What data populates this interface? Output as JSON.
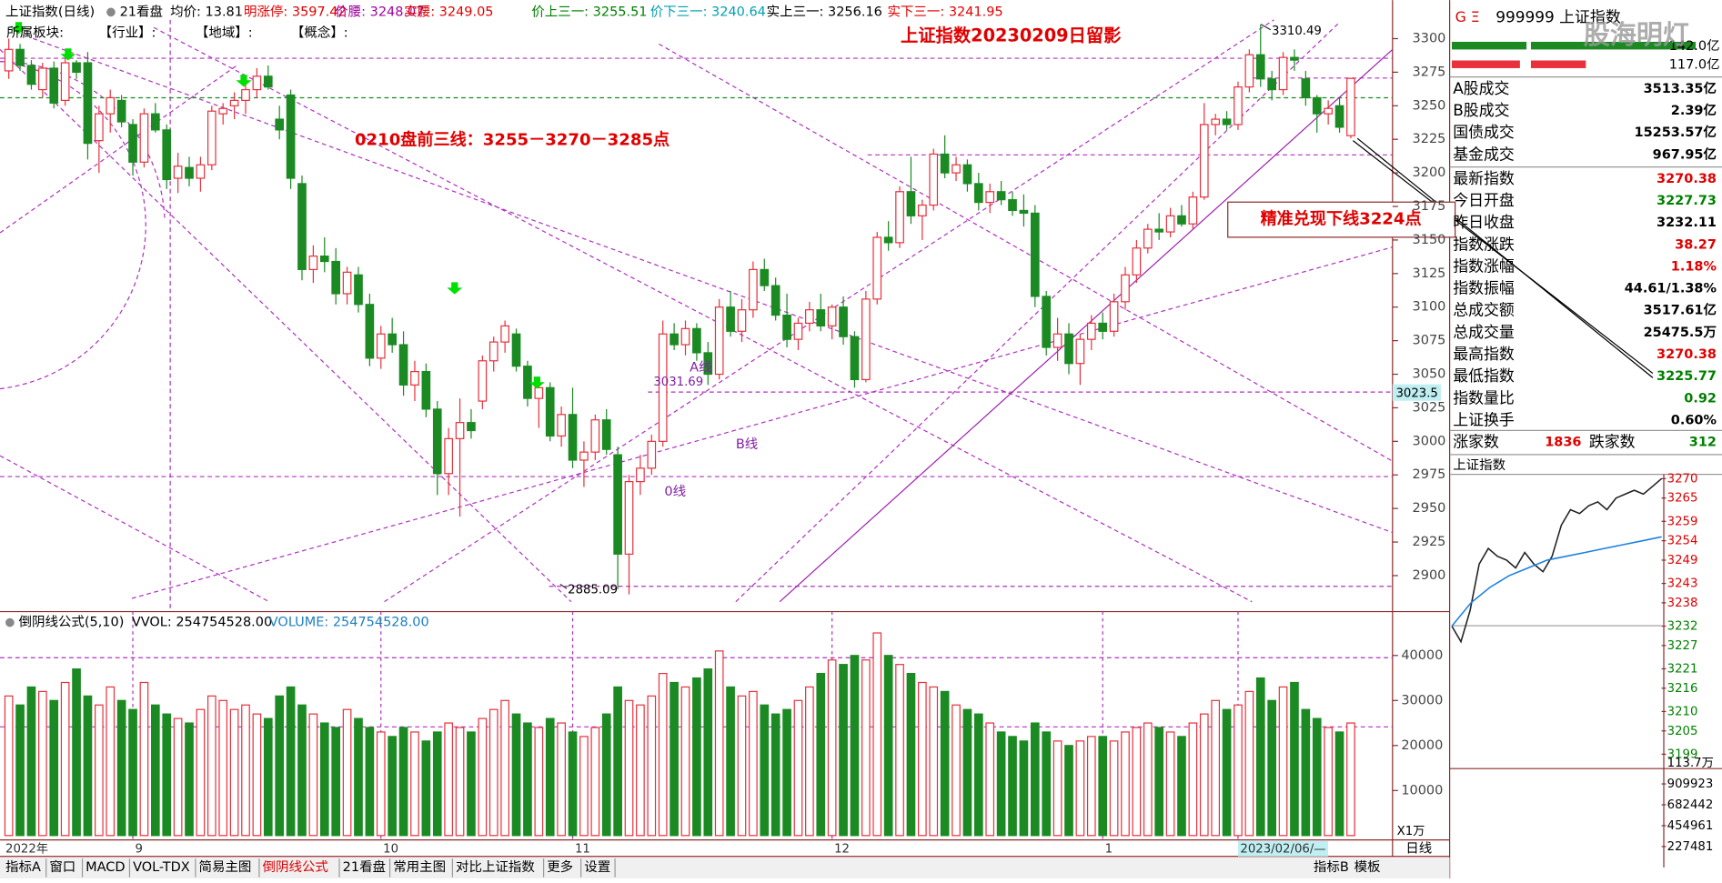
{
  "chart_data": {
    "type": "candlestick",
    "header": [
      {
        "text": "上证指数(日线)",
        "color": "#000000"
      },
      {
        "text": "21看盘",
        "color": "#000000"
      },
      {
        "text": "均价: 13.81",
        "color": "#000000"
      },
      {
        "text": "明涨停: 3597.42",
        "color": "#e00000"
      },
      {
        "text": "价腰: 3248.07",
        "color": "#a000a0"
      },
      {
        "text": "实腰: 3249.05",
        "color": "#e00000"
      },
      {
        "text": "价上三一: 3255.51",
        "color": "#008000"
      },
      {
        "text": "价下三一: 3240.64",
        "color": "#00a0b0"
      },
      {
        "text": "实上三一: 3256.16",
        "color": "#000000"
      },
      {
        "text": "实下三一: 3241.95",
        "color": "#e00000"
      }
    ],
    "sector_labels": [
      "所属板块:",
      "【行业】:",
      "【地域】:",
      "【概念】:"
    ],
    "annotations": {
      "title": "上证指数20230209日留影",
      "plan": "0210盘前三线：3255－3270－3285点",
      "result": "精准兑现下线3224点",
      "high": "3310.49",
      "low": "2885.09",
      "mid": "3031.69",
      "line_a": "A线",
      "line_b": "B线",
      "line_0": "0线",
      "level": "3023.5"
    },
    "categories": [
      "2022年",
      null,
      null,
      null,
      null,
      null,
      null,
      null,
      null,
      null,
      null,
      "9",
      null,
      null,
      null,
      null,
      null,
      null,
      null,
      null,
      null,
      null,
      null,
      null,
      null,
      null,
      null,
      null,
      null,
      null,
      null,
      null,
      null,
      "10",
      null,
      null,
      null,
      null,
      null,
      null,
      null,
      null,
      null,
      null,
      null,
      null,
      null,
      null,
      null,
      null,
      "11",
      null,
      null,
      null,
      null,
      null,
      null,
      null,
      null,
      null,
      null,
      null,
      null,
      null,
      null,
      null,
      null,
      null,
      null,
      null,
      null,
      null,
      null,
      "12",
      null,
      null,
      null,
      null,
      null,
      null,
      null,
      null,
      null,
      null,
      null,
      null,
      null,
      null,
      null,
      null,
      null,
      null,
      null,
      null,
      null,
      null,
      null,
      "1",
      null,
      null,
      null,
      null,
      null,
      null,
      null,
      null,
      null,
      null,
      null,
      "2023/02/06/—",
      null,
      null,
      null,
      null,
      null,
      null,
      null,
      null,
      null,
      null,
      null
    ],
    "candles": [
      [
        3276,
        3300,
        3270,
        3292
      ],
      [
        3292,
        3296,
        3276,
        3280
      ],
      [
        3280,
        3284,
        3262,
        3266
      ],
      [
        3262,
        3282,
        3256,
        3278
      ],
      [
        3278,
        3283,
        3248,
        3252
      ],
      [
        3254,
        3286,
        3250,
        3282
      ],
      [
        3282,
        3284,
        3270,
        3275
      ],
      [
        3282,
        3290,
        3210,
        3222
      ],
      [
        3224,
        3250,
        3200,
        3244
      ],
      [
        3244,
        3262,
        3230,
        3256
      ],
      [
        3254,
        3258,
        3234,
        3238
      ],
      [
        3236,
        3240,
        3198,
        3208
      ],
      [
        3208,
        3248,
        3204,
        3244
      ],
      [
        3244,
        3252,
        3230,
        3232
      ],
      [
        3232,
        3236,
        3188,
        3195
      ],
      [
        3196,
        3215,
        3185,
        3205
      ],
      [
        3204,
        3212,
        3190,
        3196
      ],
      [
        3196,
        3212,
        3186,
        3206
      ],
      [
        3206,
        3250,
        3202,
        3246
      ],
      [
        3244,
        3252,
        3236,
        3248
      ],
      [
        3250,
        3260,
        3240,
        3254
      ],
      [
        3254,
        3268,
        3244,
        3262
      ],
      [
        3262,
        3278,
        3256,
        3272
      ],
      [
        3272,
        3280,
        3262,
        3264
      ],
      [
        3240,
        3250,
        3225,
        3232
      ],
      [
        3258,
        3262,
        3188,
        3196
      ],
      [
        3192,
        3198,
        3120,
        3128
      ],
      [
        3128,
        3146,
        3118,
        3138
      ],
      [
        3138,
        3152,
        3126,
        3134
      ],
      [
        3134,
        3144,
        3102,
        3110
      ],
      [
        3110,
        3130,
        3102,
        3126
      ],
      [
        3124,
        3130,
        3096,
        3102
      ],
      [
        3102,
        3110,
        3056,
        3062
      ],
      [
        3062,
        3086,
        3054,
        3080
      ],
      [
        3080,
        3092,
        3066,
        3072
      ],
      [
        3072,
        3082,
        3034,
        3042
      ],
      [
        3042,
        3060,
        3030,
        3052
      ],
      [
        3052,
        3058,
        3018,
        3024
      ],
      [
        3024,
        3030,
        2960,
        2976
      ],
      [
        2976,
        3010,
        2960,
        3002
      ],
      [
        3002,
        3032,
        2944,
        3014
      ],
      [
        3014,
        3024,
        3002,
        3008
      ],
      [
        3030,
        3064,
        3024,
        3060
      ],
      [
        3060,
        3078,
        3052,
        3074
      ],
      [
        3074,
        3090,
        3066,
        3086
      ],
      [
        3080,
        3084,
        3052,
        3056
      ],
      [
        3056,
        3060,
        3026,
        3032
      ],
      [
        3032,
        3048,
        3010,
        3040
      ],
      [
        3040,
        3044,
        3000,
        3004
      ],
      [
        3004,
        3026,
        2996,
        3020
      ],
      [
        3020,
        3040,
        2980,
        2986
      ],
      [
        2986,
        3000,
        2966,
        2992
      ],
      [
        2992,
        3020,
        2986,
        3016
      ],
      [
        3016,
        3024,
        2990,
        2994
      ],
      [
        2990,
        2996,
        2890,
        2916
      ],
      [
        2916,
        2975,
        2886,
        2970
      ],
      [
        2970,
        2990,
        2960,
        2980
      ],
      [
        2980,
        3005,
        2975,
        3000
      ],
      [
        3000,
        3090,
        2996,
        3080
      ],
      [
        3080,
        3088,
        3068,
        3072
      ],
      [
        3072,
        3090,
        3064,
        3084
      ],
      [
        3084,
        3088,
        3060,
        3066
      ],
      [
        3066,
        3074,
        3042,
        3050
      ],
      [
        3050,
        3106,
        3046,
        3100
      ],
      [
        3100,
        3112,
        3078,
        3082
      ],
      [
        3082,
        3106,
        3074,
        3098
      ],
      [
        3098,
        3134,
        3092,
        3128
      ],
      [
        3128,
        3136,
        3112,
        3116
      ],
      [
        3116,
        3122,
        3090,
        3094
      ],
      [
        3094,
        3110,
        3070,
        3076
      ],
      [
        3076,
        3092,
        3068,
        3088
      ],
      [
        3088,
        3104,
        3082,
        3098
      ],
      [
        3098,
        3110,
        3082,
        3086
      ],
      [
        3086,
        3102,
        3076,
        3100
      ],
      [
        3100,
        3108,
        3072,
        3078
      ],
      [
        3078,
        3082,
        3040,
        3046
      ],
      [
        3046,
        3112,
        3044,
        3106
      ],
      [
        3106,
        3156,
        3102,
        3152
      ],
      [
        3152,
        3164,
        3142,
        3148
      ],
      [
        3148,
        3190,
        3144,
        3186
      ],
      [
        3186,
        3212,
        3162,
        3168
      ],
      [
        3168,
        3180,
        3150,
        3176
      ],
      [
        3176,
        3218,
        3172,
        3214
      ],
      [
        3214,
        3228,
        3196,
        3200
      ],
      [
        3200,
        3212,
        3194,
        3206
      ],
      [
        3206,
        3210,
        3186,
        3192
      ],
      [
        3192,
        3200,
        3172,
        3178
      ],
      [
        3178,
        3192,
        3170,
        3186
      ],
      [
        3186,
        3194,
        3176,
        3180
      ],
      [
        3180,
        3186,
        3168,
        3172
      ],
      [
        3172,
        3184,
        3160,
        3170
      ],
      [
        3170,
        3176,
        3100,
        3108
      ],
      [
        3108,
        3112,
        3064,
        3070
      ],
      [
        3070,
        3092,
        3060,
        3080
      ],
      [
        3080,
        3088,
        3050,
        3058
      ],
      [
        3058,
        3080,
        3042,
        3076
      ],
      [
        3076,
        3094,
        3068,
        3088
      ],
      [
        3088,
        3096,
        3076,
        3082
      ],
      [
        3082,
        3110,
        3078,
        3104
      ],
      [
        3104,
        3130,
        3098,
        3124
      ],
      [
        3124,
        3150,
        3118,
        3144
      ],
      [
        3144,
        3162,
        3140,
        3158
      ],
      [
        3158,
        3170,
        3150,
        3156
      ],
      [
        3156,
        3174,
        3152,
        3168
      ],
      [
        3168,
        3176,
        3160,
        3162
      ],
      [
        3162,
        3186,
        3158,
        3182
      ],
      [
        3182,
        3252,
        3180,
        3236
      ],
      [
        3236,
        3244,
        3228,
        3240
      ],
      [
        3240,
        3246,
        3232,
        3236
      ],
      [
        3236,
        3268,
        3232,
        3264
      ],
      [
        3264,
        3292,
        3260,
        3288
      ],
      [
        3288,
        3310.49,
        3264,
        3270
      ],
      [
        3270,
        3276,
        3254,
        3262
      ],
      [
        3262,
        3290,
        3258,
        3286
      ],
      [
        3286,
        3292,
        3276,
        3284
      ],
      [
        3270,
        3276,
        3250,
        3256
      ],
      [
        3256,
        3258,
        3230,
        3244
      ],
      [
        3244,
        3254,
        3236,
        3248
      ],
      [
        3250,
        3256,
        3230,
        3234
      ],
      [
        3227.73,
        3270.38,
        3225.77,
        3270.38
      ]
    ],
    "ylim": [
      2874,
      3314
    ],
    "yticks": [
      2900,
      2925,
      2950,
      2975,
      3000,
      3025,
      3050,
      3075,
      3100,
      3125,
      3150,
      3175,
      3200,
      3225,
      3250,
      3275,
      3300
    ],
    "up_color": "#e8313c",
    "down_color": "#1b8a22",
    "volume": {
      "title": "倒阴线公式(5,10)",
      "vvol": "VVOL: 254754528.00",
      "vol_label": "VOLUME: 254754528.00",
      "unit": "X1万",
      "values": [
        31000,
        29000,
        33000,
        32000,
        30000,
        34000,
        37000,
        31000,
        29000,
        33000,
        30000,
        28000,
        34000,
        29000,
        27000,
        26000,
        25000,
        28000,
        31000,
        30000,
        28000,
        29000,
        27000,
        26000,
        31000,
        33000,
        29000,
        27000,
        25000,
        24000,
        28000,
        26000,
        24000,
        23000,
        22000,
        24000,
        23000,
        21000,
        23000,
        25000,
        24000,
        23000,
        26000,
        28000,
        30000,
        27000,
        25000,
        24000,
        26000,
        25000,
        23000,
        22000,
        24000,
        27000,
        33000,
        30000,
        29000,
        31000,
        36000,
        34000,
        33000,
        35000,
        37000,
        41000,
        33000,
        31000,
        32000,
        29000,
        27000,
        28000,
        30000,
        33000,
        36000,
        39000,
        38000,
        40000,
        39000,
        45000,
        40000,
        38000,
        36000,
        34000,
        33000,
        32000,
        29000,
        28000,
        27000,
        25000,
        23000,
        22000,
        21000,
        25000,
        23000,
        21000,
        20000,
        21000,
        22000,
        22000,
        21000,
        23000,
        24000,
        25000,
        24000,
        23000,
        22000,
        25000,
        27000,
        30000,
        28000,
        29000,
        32000,
        35000,
        30000,
        33000,
        34000,
        28000,
        26000,
        24000,
        23000,
        25000
      ],
      "ylim": [
        0,
        49500
      ],
      "yticks": [
        10000,
        20000,
        30000,
        40000
      ]
    }
  },
  "side_panel": {
    "code": "999999 上证指数",
    "top_amount": "142.0亿",
    "second_amount": "117.0亿",
    "watermark": "股海明灯",
    "rows": [
      {
        "label": "A股成交",
        "value": "3513.35亿",
        "color": "#000000"
      },
      {
        "label": "B股成交",
        "value": "2.39亿",
        "color": "#000000"
      },
      {
        "label": "国债成交",
        "value": "15253.57亿",
        "color": "#000000"
      },
      {
        "label": "基金成交",
        "value": "967.95亿",
        "color": "#000000"
      },
      {
        "label": "最新指数",
        "value": "3270.38",
        "color": "#e00000"
      },
      {
        "label": "今日开盘",
        "value": "3227.73",
        "color": "#008000"
      },
      {
        "label": "昨日收盘",
        "value": "3232.11",
        "color": "#000000"
      },
      {
        "label": "指数涨跌",
        "value": "38.27",
        "color": "#e00000"
      },
      {
        "label": "指数涨幅",
        "value": "1.18%",
        "color": "#e00000"
      },
      {
        "label": "指数振幅",
        "value": "44.61/1.38%",
        "color": "#000000"
      },
      {
        "label": "总成交额",
        "value": "3517.61亿",
        "color": "#000000"
      },
      {
        "label": "总成交量",
        "value": "25475.5万",
        "color": "#000000"
      },
      {
        "label": "最高指数",
        "value": "3270.38",
        "color": "#e00000"
      },
      {
        "label": "最低指数",
        "value": "3225.77",
        "color": "#008000"
      },
      {
        "label": "指数量比",
        "value": "0.92",
        "color": "#008000"
      },
      {
        "label": "上证换手",
        "value": "0.60%",
        "color": "#000000"
      }
    ],
    "breadth": {
      "up_label": "涨家数",
      "up_value": "1836",
      "down_label": "跌家数",
      "down_value": "312"
    },
    "intraday": {
      "title": "上证指数",
      "price": [
        3232,
        3228,
        3236,
        3248,
        3252,
        3250,
        3249,
        3247,
        3251,
        3248,
        3246,
        3250,
        3258,
        3262,
        3261,
        3263,
        3264,
        3262,
        3265,
        3266,
        3267,
        3266,
        3268,
        3270
      ],
      "avg": [
        3232,
        3238,
        3242,
        3245,
        3247,
        3249,
        3250,
        3251,
        3252,
        3253,
        3254,
        3255
      ],
      "ylim": [
        3195.3,
        3271.1
      ],
      "yticks": [
        3270,
        3265,
        3259,
        3254,
        3249,
        3243,
        3238,
        3232,
        3227,
        3221,
        3216,
        3210,
        3205,
        3199
      ],
      "vol_label": "113.7万",
      "vol_ylim": [
        0,
        1137000
      ],
      "vol_yticks": [
        909923,
        682442,
        454961,
        227481
      ]
    },
    "period": "日线"
  },
  "tabs": [
    "指标A",
    "窗口",
    "MACD",
    "VOL-TDX",
    "简易主图",
    "倒阴线公式",
    "21看盘",
    "常用主图",
    "对比上证指数",
    "更多",
    "设置"
  ],
  "right_tabs": [
    "指标B",
    "模板"
  ]
}
